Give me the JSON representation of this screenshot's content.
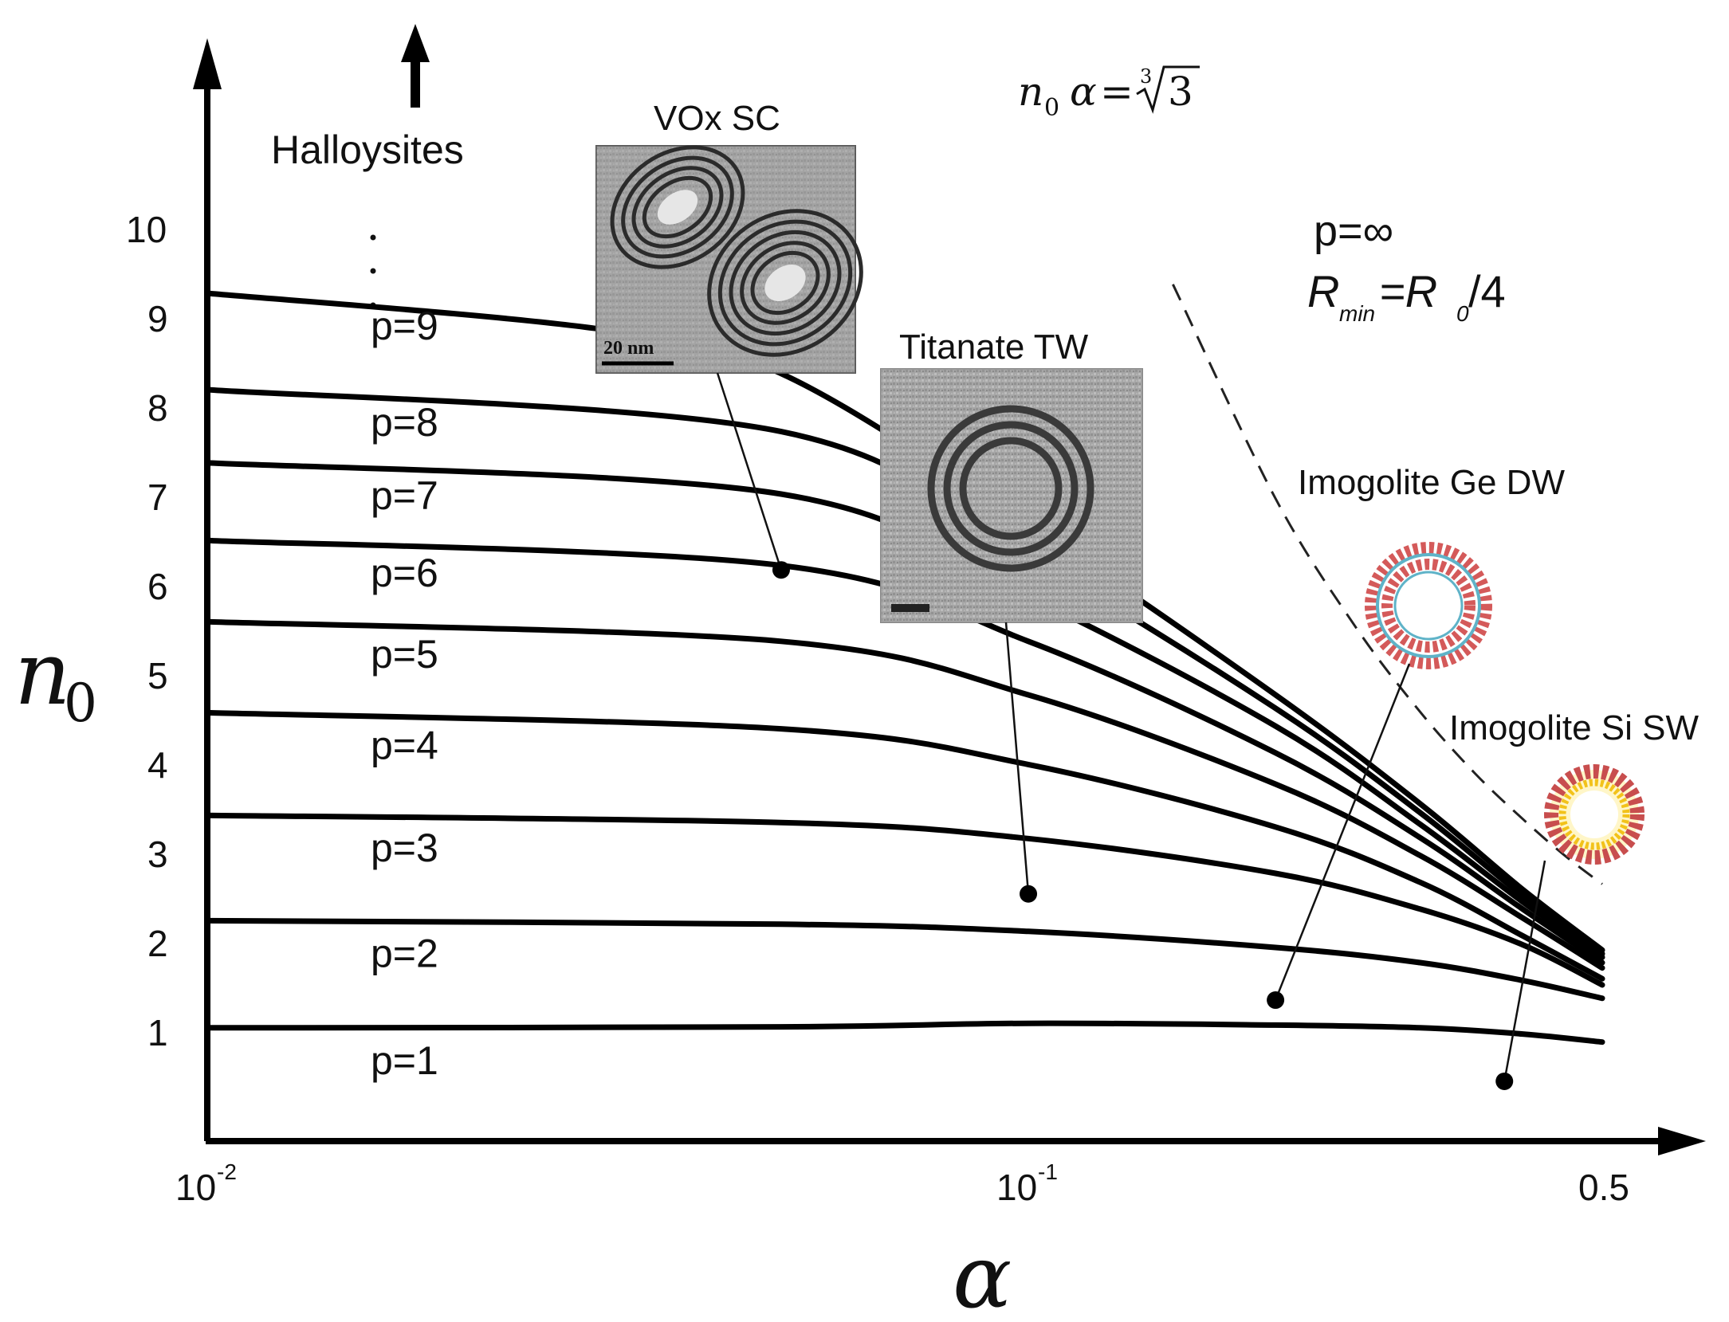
{
  "chart_data": {
    "type": "line",
    "title": "",
    "xlabel": "α",
    "ylabel": "n0",
    "ylabel_main": "n",
    "ylabel_sub": "0",
    "x_scale": "log",
    "xlim": [
      0.01,
      0.6
    ],
    "ylim": [
      0,
      11
    ],
    "x_ticks": [
      {
        "value": 0.01,
        "base": "10",
        "exp": "-2"
      },
      {
        "value": 0.1,
        "base": "10",
        "exp": "-1"
      },
      {
        "value": 0.5,
        "base": "0.5",
        "exp": ""
      }
    ],
    "y_ticks": [
      "1",
      "2",
      "3",
      "4",
      "5",
      "6",
      "7",
      "8",
      "9",
      "10"
    ],
    "y_ellipsis": ". . .",
    "series": [
      {
        "name": "p=1",
        "x": [
          0.01,
          0.05,
          0.1,
          0.2,
          0.3,
          0.4,
          0.5
        ],
        "y": [
          1.27,
          1.28,
          1.32,
          1.3,
          1.27,
          1.2,
          1.11
        ]
      },
      {
        "name": "p=2",
        "x": [
          0.01,
          0.05,
          0.1,
          0.2,
          0.3,
          0.4,
          0.5
        ],
        "y": [
          2.47,
          2.43,
          2.35,
          2.17,
          2.0,
          1.8,
          1.6
        ]
      },
      {
        "name": "p=3",
        "x": [
          0.01,
          0.05,
          0.1,
          0.2,
          0.3,
          0.4,
          0.5
        ],
        "y": [
          3.65,
          3.57,
          3.39,
          3.0,
          2.6,
          2.2,
          1.75
        ]
      },
      {
        "name": "p=4",
        "x": [
          0.01,
          0.05,
          0.1,
          0.2,
          0.3,
          0.4,
          0.5
        ],
        "y": [
          4.8,
          4.62,
          4.22,
          3.52,
          2.9,
          2.3,
          1.82
        ]
      },
      {
        "name": "p=5",
        "x": [
          0.01,
          0.05,
          0.1,
          0.2,
          0.3,
          0.4,
          0.5
        ],
        "y": [
          5.82,
          5.6,
          5.0,
          4.0,
          3.2,
          2.5,
          1.94
        ]
      },
      {
        "name": "p=6",
        "x": [
          0.01,
          0.05,
          0.1,
          0.2,
          0.3,
          0.4,
          0.5
        ],
        "y": [
          6.73,
          6.45,
          5.6,
          4.35,
          3.4,
          2.6,
          2.0
        ]
      },
      {
        "name": "p=7",
        "x": [
          0.01,
          0.05,
          0.1,
          0.2,
          0.3,
          0.4,
          0.5
        ],
        "y": [
          7.6,
          7.25,
          6.1,
          4.65,
          3.55,
          2.68,
          2.06
        ]
      },
      {
        "name": "p=8",
        "x": [
          0.01,
          0.05,
          0.1,
          0.2,
          0.3,
          0.4,
          0.5
        ],
        "y": [
          8.42,
          7.95,
          6.55,
          4.85,
          3.68,
          2.75,
          2.1
        ]
      },
      {
        "name": "p=9",
        "x": [
          0.01,
          0.03,
          0.05,
          0.1,
          0.2,
          0.3,
          0.4,
          0.5
        ],
        "y": [
          9.5,
          9.1,
          8.6,
          6.9,
          5.0,
          3.78,
          2.82,
          2.14
        ]
      }
    ],
    "limit_curve": {
      "label_left": "n",
      "label_sub": "0",
      "label_alpha": "α",
      "label_eq": "=",
      "label_root_index": "3",
      "label_radicand": "3",
      "x": [
        0.12,
        0.15,
        0.2,
        0.25,
        0.3,
        0.35,
        0.4,
        0.45,
        0.5
      ],
      "y": [
        12.0,
        9.6,
        7.2,
        5.77,
        4.81,
        4.12,
        3.61,
        3.2,
        2.88
      ]
    },
    "data_points": [
      {
        "name": "VOx SC",
        "x": 0.05,
        "y": 6.4
      },
      {
        "name": "Titanate TW",
        "x": 0.1,
        "y": 2.77
      },
      {
        "name": "Imogolite Ge DW",
        "x": 0.2,
        "y": 1.58
      },
      {
        "name": "Imogolite Si SW",
        "x": 0.38,
        "y": 0.67
      }
    ],
    "annotations": {
      "halloysites": "Halloysites",
      "p_inf": "p=∞",
      "rmin_r": "R",
      "rmin_sub": "min",
      "rmin_eq": "=R",
      "rmin_sub0": "0",
      "rmin_div": "/4",
      "scale_bar": "20 nm"
    }
  }
}
